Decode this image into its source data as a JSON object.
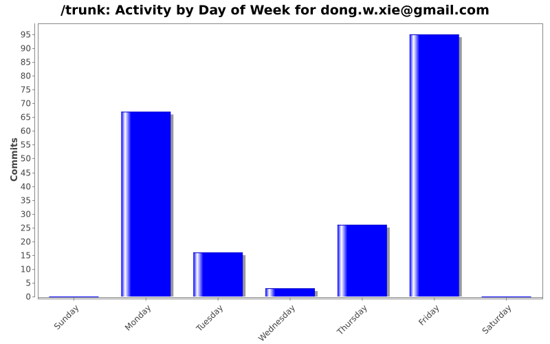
{
  "chart_data": {
    "type": "bar",
    "title": "/trunk: Activity by Day of Week for dong.w.xie@gmail.com",
    "xlabel": "",
    "ylabel": "Commits",
    "categories": [
      "Sunday",
      "Monday",
      "Tuesday",
      "Wednesday",
      "Thursday",
      "Friday",
      "Saturday"
    ],
    "values": [
      0,
      67,
      16,
      3,
      26,
      95,
      0
    ],
    "ylim": [
      0,
      99
    ],
    "yticks": [
      0,
      5,
      10,
      15,
      20,
      25,
      30,
      35,
      40,
      45,
      50,
      55,
      60,
      65,
      70,
      75,
      80,
      85,
      90,
      95
    ],
    "bar_color": "#0000ff",
    "shadow_color": "#999999",
    "grid": false,
    "legend": "none"
  }
}
